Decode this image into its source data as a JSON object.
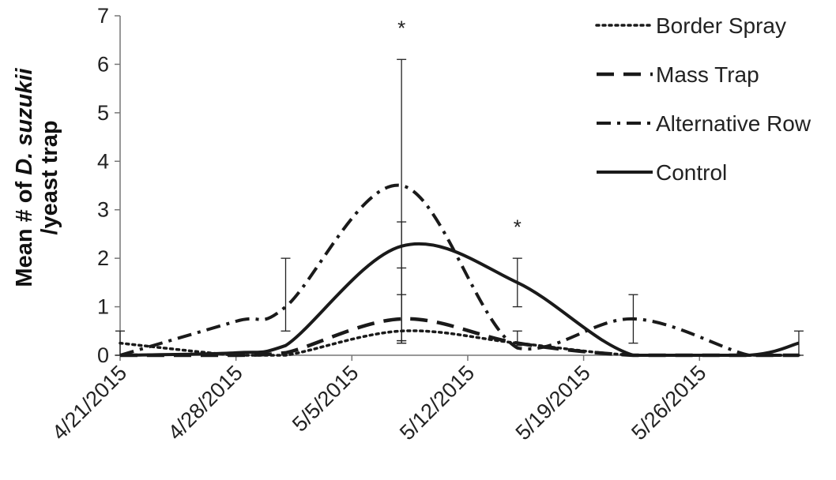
{
  "chart_data": {
    "type": "line",
    "title": "",
    "xlabel": "",
    "ylabel": {
      "prefix": "Mean # of ",
      "species": "D. suzukii",
      "line2": "/yeast trap"
    },
    "ylim": [
      0,
      7
    ],
    "yticks": [
      "0",
      "1",
      "2",
      "3",
      "4",
      "5",
      "6",
      "7"
    ],
    "xlim": [
      "2015-04-21",
      "2015-05-31"
    ],
    "xticks": [
      "4/21/2015",
      "4/28/2015",
      "5/5/2015",
      "5/12/2015",
      "5/19/2015",
      "5/26/2015"
    ],
    "grid": false,
    "legend_position": "top-right",
    "x": [
      "2015-04-21",
      "2015-04-28",
      "2015-05-01",
      "2015-05-08",
      "2015-05-15",
      "2015-05-22",
      "2015-05-29",
      "2015-06-01"
    ],
    "series": [
      {
        "name": "Border Spray",
        "style": "dotted",
        "points": [
          [
            "2015-04-21",
            0.25
          ],
          [
            "2015-04-28",
            0
          ],
          [
            "2015-05-01",
            0
          ],
          [
            "2015-05-08",
            0.5
          ],
          [
            "2015-05-15",
            0.25
          ],
          [
            "2015-05-22",
            0
          ],
          [
            "2015-05-29",
            0
          ],
          [
            "2015-06-01",
            0
          ]
        ]
      },
      {
        "name": "Mass Trap",
        "style": "dashed",
        "points": [
          [
            "2015-04-21",
            0
          ],
          [
            "2015-04-28",
            0
          ],
          [
            "2015-05-01",
            0.05
          ],
          [
            "2015-05-08",
            0.75
          ],
          [
            "2015-05-15",
            0.25
          ],
          [
            "2015-05-22",
            0
          ],
          [
            "2015-05-29",
            0
          ],
          [
            "2015-06-01",
            0
          ]
        ]
      },
      {
        "name": "Alternative Row",
        "style": "dash-dot",
        "points": [
          [
            "2015-04-21",
            0
          ],
          [
            "2015-04-28",
            0.7
          ],
          [
            "2015-05-01",
            1.0
          ],
          [
            "2015-05-08",
            3.5
          ],
          [
            "2015-05-15",
            0.15
          ],
          [
            "2015-05-22",
            0.75
          ],
          [
            "2015-05-29",
            0
          ],
          [
            "2015-06-01",
            0
          ]
        ]
      },
      {
        "name": "Control",
        "style": "solid",
        "points": [
          [
            "2015-04-21",
            0
          ],
          [
            "2015-04-28",
            0.05
          ],
          [
            "2015-05-01",
            0.2
          ],
          [
            "2015-05-08",
            2.25
          ],
          [
            "2015-05-15",
            1.5
          ],
          [
            "2015-05-22",
            0
          ],
          [
            "2015-05-29",
            0
          ],
          [
            "2015-06-01",
            0.25
          ]
        ]
      }
    ],
    "error_bars": [
      {
        "x": "2015-04-21",
        "low": 0,
        "high": 0.5
      },
      {
        "x": "2015-05-01",
        "low": 0.5,
        "high": 2.0
      },
      {
        "x": "2015-05-08",
        "low": 0.25,
        "high": 6.1
      },
      {
        "x": "2015-05-08",
        "low": 0.3,
        "high": 2.75
      },
      {
        "x": "2015-05-08",
        "low": 0.3,
        "high": 1.8
      },
      {
        "x": "2015-05-08",
        "low": 0.25,
        "high": 1.25
      },
      {
        "x": "2015-05-15",
        "low": 1.0,
        "high": 2.0
      },
      {
        "x": "2015-05-15",
        "low": 0.2,
        "high": 0.5
      },
      {
        "x": "2015-05-22",
        "low": 0.25,
        "high": 1.25
      },
      {
        "x": "2015-06-01",
        "low": 0,
        "high": 0.5
      }
    ],
    "annotations": [
      {
        "text": "*",
        "x": "2015-05-08",
        "y": 6.6
      },
      {
        "text": "*",
        "x": "2015-05-15",
        "y": 2.5
      }
    ]
  }
}
